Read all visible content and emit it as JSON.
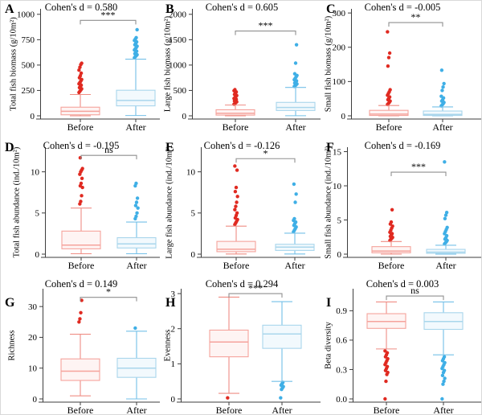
{
  "figure": {
    "background": "#ffffff"
  },
  "colors": {
    "before_dot": "#e02a21",
    "before_box": "#f5a39c",
    "before_whisker": "#ef8d84",
    "before_fill": "#fef4f3",
    "after_dot": "#3fafe6",
    "after_box": "#a9d6ec",
    "after_whisker": "#74c0e8",
    "after_fill": "#f2f9fd",
    "axis": "#3d3d3d",
    "bracket": "#8f8f8f",
    "text": "#000000"
  },
  "chart_data": {
    "type": "box",
    "categories": [
      "Before",
      "After"
    ],
    "panels": [
      {
        "letter": "A",
        "title": "Cohen's d = 0.580",
        "cohens_d": 0.58,
        "significance": "***",
        "ylabel": "Total fish biomass (g/10m²)",
        "tick_values": [
          0,
          250,
          500,
          750,
          1000
        ],
        "tick_labels": [
          "0",
          "250",
          "500",
          "750",
          "1000"
        ],
        "ylim": [
          0,
          1030
        ],
        "bracket_y": 940,
        "before": {
          "whislo": 0,
          "q1": 10,
          "med": 45,
          "q3": 85,
          "whishi": 210,
          "outliers": [
            230,
            242,
            254,
            266,
            278,
            290,
            302,
            315,
            328,
            342,
            358,
            375,
            395,
            420,
            450,
            478,
            505,
            518
          ]
        },
        "after": {
          "whislo": 3,
          "q1": 98,
          "med": 152,
          "q3": 252,
          "whishi": 558,
          "outliers": [
            572,
            582,
            592,
            602,
            612,
            624,
            636,
            648,
            660,
            672,
            686,
            700,
            714,
            728,
            742,
            756,
            770,
            848
          ]
        }
      },
      {
        "letter": "B",
        "title": "Cohen's d = 0.605",
        "cohens_d": 0.605,
        "significance": "***",
        "ylabel": "Large fish biomass (g/10m²)",
        "tick_values": [
          0,
          500,
          1000,
          1500,
          2000
        ],
        "tick_labels": [
          "0",
          "500",
          "1000",
          "1500",
          "2000"
        ],
        "ylim": [
          0,
          2060
        ],
        "bracket_y": 1670,
        "before": {
          "whislo": 0,
          "q1": 14,
          "med": 50,
          "q3": 120,
          "whishi": 212,
          "outliers": [
            228,
            244,
            260,
            276,
            292,
            308,
            325,
            342,
            360,
            380,
            400,
            422,
            446,
            470,
            495,
            515
          ]
        },
        "after": {
          "whislo": 2,
          "q1": 105,
          "med": 165,
          "q3": 265,
          "whishi": 560,
          "outliers": [
            580,
            594,
            610,
            628,
            646,
            666,
            688,
            712,
            738,
            766,
            796,
            828,
            1038,
            1400
          ]
        }
      },
      {
        "letter": "C",
        "title": "Cohen's d = -0.005",
        "cohens_d": -0.005,
        "significance": "**",
        "ylabel": "Small fish biomass (g/10m²)",
        "tick_values": [
          0,
          100,
          200,
          300
        ],
        "tick_labels": [
          "0",
          "100",
          "200",
          "300"
        ],
        "ylim": [
          0,
          305
        ],
        "bracket_y": 272,
        "before": {
          "whislo": 0,
          "q1": 1,
          "med": 5,
          "q3": 16,
          "whishi": 30,
          "outliers": [
            33,
            36,
            39,
            43,
            47,
            51,
            55,
            60,
            65,
            70,
            76,
            145,
            170,
            183,
            245
          ]
        },
        "after": {
          "whislo": 0,
          "q1": 1,
          "med": 4,
          "q3": 14,
          "whishi": 26,
          "outliers": [
            29,
            32,
            35,
            39,
            43,
            47,
            52,
            57,
            74,
            84,
            94,
            133
          ]
        }
      },
      {
        "letter": "D",
        "title": "Cohen's d = -0.195",
        "cohens_d": -0.195,
        "significance": "ns",
        "ylabel": "Total fish abundance (ind./10m²)",
        "tick_values": [
          0,
          5,
          10
        ],
        "tick_labels": [
          "0",
          "5",
          "10"
        ],
        "ylim": [
          0,
          12.7
        ],
        "bracket_y": 12.0,
        "before": {
          "whislo": 0.05,
          "q1": 0.65,
          "med": 1.1,
          "q3": 2.8,
          "whishi": 5.6,
          "outliers": [
            6.1,
            6.4,
            7.1,
            8.1,
            8.3,
            8.6,
            9.2,
            9.7,
            10.0,
            10.2,
            10.4,
            11.7
          ]
        },
        "after": {
          "whislo": 0.05,
          "q1": 0.75,
          "med": 1.25,
          "q3": 2.0,
          "whishi": 3.9,
          "outliers": [
            4.3,
            4.6,
            5.0,
            5.6,
            5.9,
            6.3,
            6.8,
            8.3,
            8.6
          ]
        }
      },
      {
        "letter": "E",
        "title": "Cohen's d = -0.126",
        "cohens_d": -0.126,
        "significance": "*",
        "ylabel": "Large fish abundance (ind./10m²)",
        "tick_values": [
          0,
          5,
          10
        ],
        "tick_labels": [
          "0",
          "5",
          "10"
        ],
        "ylim": [
          0,
          12.7
        ],
        "bracket_y": 11.6,
        "before": {
          "whislo": 0.02,
          "q1": 0.3,
          "med": 0.6,
          "q3": 1.55,
          "whishi": 3.4,
          "outliers": [
            3.6,
            3.8,
            4.0,
            4.2,
            4.4,
            4.7,
            5.0,
            5.4,
            5.8,
            6.3,
            7.0,
            7.6,
            8.1,
            10.2,
            10.7
          ]
        },
        "after": {
          "whislo": 0.02,
          "q1": 0.45,
          "med": 0.85,
          "q3": 1.2,
          "whishi": 2.55,
          "outliers": [
            2.7,
            2.9,
            3.1,
            3.3,
            3.5,
            3.7,
            3.9,
            4.1,
            4.3,
            6.3,
            7.3,
            8.5
          ]
        }
      },
      {
        "letter": "F",
        "title": "Cohen's d = -0.169",
        "cohens_d": -0.169,
        "significance": "***",
        "ylabel": "Small fish abundance (ind./10m²)",
        "tick_values": [
          0,
          5,
          10,
          15
        ],
        "tick_labels": [
          "0",
          "5",
          "10",
          "15"
        ],
        "ylim": [
          0,
          15.3
        ],
        "bracket_y": 12.0,
        "before": {
          "whislo": 0,
          "q1": 0.2,
          "med": 0.45,
          "q3": 1.1,
          "whishi": 1.85,
          "outliers": [
            2.0,
            2.15,
            2.3,
            2.45,
            2.6,
            2.8,
            3.0,
            3.2,
            3.5,
            3.8,
            4.1,
            4.4,
            4.7,
            6.5
          ]
        },
        "after": {
          "whislo": 0,
          "q1": 0.12,
          "med": 0.3,
          "q3": 0.7,
          "whishi": 1.3,
          "outliers": [
            1.5,
            1.65,
            1.8,
            2.0,
            2.2,
            2.4,
            2.7,
            3.0,
            3.3,
            3.6,
            3.9,
            5.2,
            5.7,
            6.1,
            13.5
          ]
        }
      },
      {
        "letter": "G",
        "title": "Cohen's d = 0.149",
        "cohens_d": 0.149,
        "significance": "*",
        "ylabel": "Richness",
        "tick_values": [
          0,
          10,
          20,
          30
        ],
        "tick_labels": [
          "0",
          "10",
          "20",
          "30"
        ],
        "ylim": [
          0,
          35
        ],
        "bracket_y": 33,
        "before": {
          "whislo": 1,
          "q1": 6,
          "med": 9,
          "q3": 13,
          "whishi": 21,
          "outliers": [
            25,
            26,
            28,
            32
          ]
        },
        "after": {
          "whislo": 0,
          "q1": 7,
          "med": 10,
          "q3": 13.2,
          "whishi": 22,
          "outliers": [
            23
          ]
        }
      },
      {
        "letter": "H",
        "title": "Cohen's d = 0.294",
        "cohens_d": 0.294,
        "significance": "***",
        "ylabel": "Evenness",
        "tick_values": [
          0,
          1,
          2,
          3
        ],
        "tick_labels": [
          "0",
          "1",
          "2",
          "3"
        ],
        "ylim": [
          0,
          3.07
        ],
        "bracket_y": 3.0,
        "before": {
          "whislo": 0.16,
          "q1": 1.2,
          "med": 1.62,
          "q3": 1.96,
          "whishi": 2.9,
          "outliers": [
            0.03
          ]
        },
        "after": {
          "whislo": 0.5,
          "q1": 1.44,
          "med": 1.85,
          "q3": 2.1,
          "whishi": 2.77,
          "outliers": [
            0.03,
            0.27,
            0.31,
            0.35,
            0.39,
            0.43,
            0.47
          ]
        }
      },
      {
        "letter": "I",
        "title": "Cohen's d = 0.003",
        "cohens_d": 0.003,
        "significance": "ns",
        "ylabel": "Beta diversity",
        "tick_values": [
          0,
          0.3,
          0.6,
          0.9
        ],
        "tick_labels": [
          "0.0",
          "0.3",
          "0.6",
          "0.9"
        ],
        "ylim": [
          0,
          1.1
        ],
        "bracket_y": 1.05,
        "before": {
          "whislo": 0.51,
          "q1": 0.72,
          "med": 0.79,
          "q3": 0.87,
          "whishi": 0.99,
          "outliers": [
            0.0,
            0.18,
            0.25,
            0.27,
            0.29,
            0.31,
            0.33,
            0.35,
            0.37,
            0.39,
            0.41,
            0.43,
            0.45,
            0.47,
            0.49
          ]
        },
        "after": {
          "whislo": 0.45,
          "q1": 0.71,
          "med": 0.79,
          "q3": 0.88,
          "whishi": 0.99,
          "outliers": [
            0.0,
            0.15,
            0.18,
            0.21,
            0.24,
            0.27,
            0.29,
            0.31,
            0.33,
            0.35,
            0.37,
            0.39,
            0.41,
            0.43
          ]
        }
      }
    ]
  }
}
